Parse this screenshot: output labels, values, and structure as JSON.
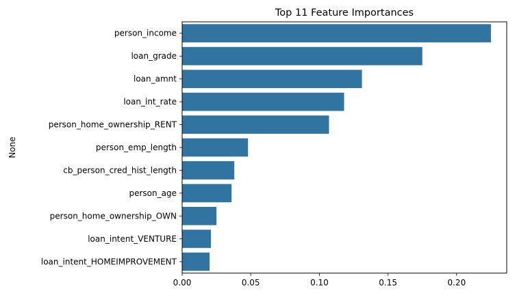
{
  "chart_data": {
    "type": "bar",
    "orientation": "horizontal",
    "title": "Top 11 Feature Importances",
    "xlabel": "",
    "ylabel": "None",
    "categories": [
      "person_income",
      "loan_grade",
      "loan_amnt",
      "loan_int_rate",
      "person_home_ownership_RENT",
      "person_emp_length",
      "cb_person_cred_hist_length",
      "person_age",
      "person_home_ownership_OWN",
      "loan_intent_VENTURE",
      "loan_intent_HOMEIMPROVEMENT"
    ],
    "values": [
      0.225,
      0.175,
      0.131,
      0.118,
      0.107,
      0.048,
      0.038,
      0.036,
      0.025,
      0.021,
      0.02
    ],
    "xlim": [
      0,
      0.2365
    ],
    "xticks": [
      0.0,
      0.05,
      0.1,
      0.15,
      0.2
    ],
    "xtick_labels": [
      "0.00",
      "0.05",
      "0.10",
      "0.15",
      "0.20"
    ],
    "grid": false,
    "bar_color": "#3274a1"
  }
}
